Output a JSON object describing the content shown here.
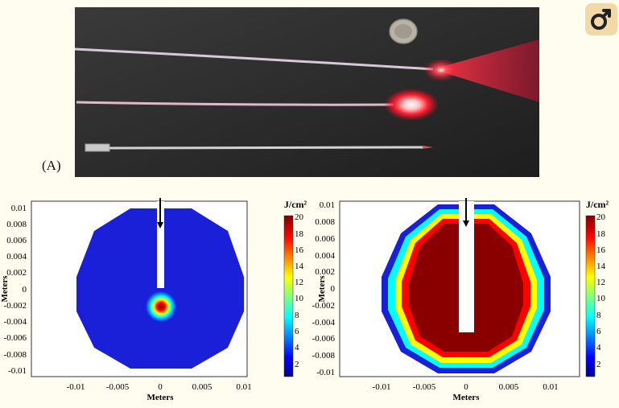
{
  "panel_label": "(A)",
  "icons": {
    "corner": "share-icon"
  },
  "colors": {
    "background": "#fffdf0",
    "corner_button": "#f2d9a8",
    "laser": "#ff2a3a"
  },
  "plots": [
    {
      "ylabel": "Meters",
      "xlabel": "Meters",
      "colorbar_label": "J/cm²",
      "yticks": [
        "0.01",
        "0.008",
        "0.006",
        "0.004",
        "0.002",
        "0",
        "-0.002",
        "-0.004",
        "-0.006",
        "-0.008",
        "-0.01"
      ],
      "xticks": [
        "-0.01",
        "-0.005",
        "0",
        "0.005",
        "0.01"
      ],
      "cbticks": [
        "20",
        "18",
        "16",
        "14",
        "12",
        "10",
        "8",
        "6",
        "4",
        "2"
      ]
    },
    {
      "ylabel": "Meters",
      "xlabel": "Meters",
      "colorbar_label": "J/cm²",
      "yticks": [
        "0.01",
        "0.008",
        "0.006",
        "0.004",
        "0.002",
        "0",
        "-0.002",
        "-0.004",
        "-0.006",
        "-0.008",
        "-0.01"
      ],
      "xticks": [
        "-0.01",
        "-0.005",
        "0",
        "0.005",
        "0.01"
      ],
      "cbticks": [
        "20",
        "18",
        "16",
        "14",
        "12",
        "10",
        "8",
        "6",
        "4",
        "2"
      ]
    }
  ]
}
